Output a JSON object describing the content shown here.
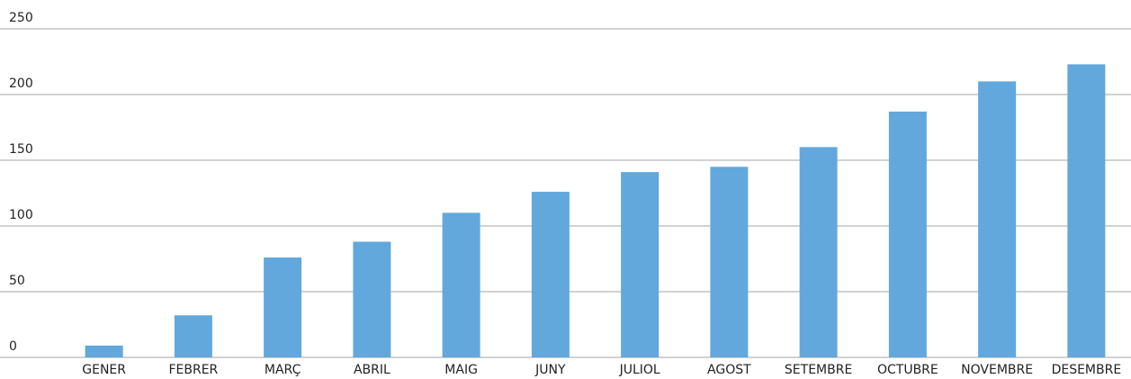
{
  "chart_data": {
    "type": "bar",
    "categories": [
      "GENER",
      "FEBRER",
      "MARÇ",
      "ABRIL",
      "MAIG",
      "JUNY",
      "JULIOL",
      "AGOST",
      "SETEMBRE",
      "OCTUBRE",
      "NOVEMBRE",
      "DESEMBRE"
    ],
    "values": [
      9,
      32,
      76,
      88,
      110,
      126,
      141,
      145,
      160,
      187,
      210,
      223
    ],
    "color": "#62a8dc",
    "ylim": [
      0,
      250
    ],
    "yticks": [
      0,
      50,
      100,
      150,
      200,
      250
    ],
    "grid": true
  }
}
